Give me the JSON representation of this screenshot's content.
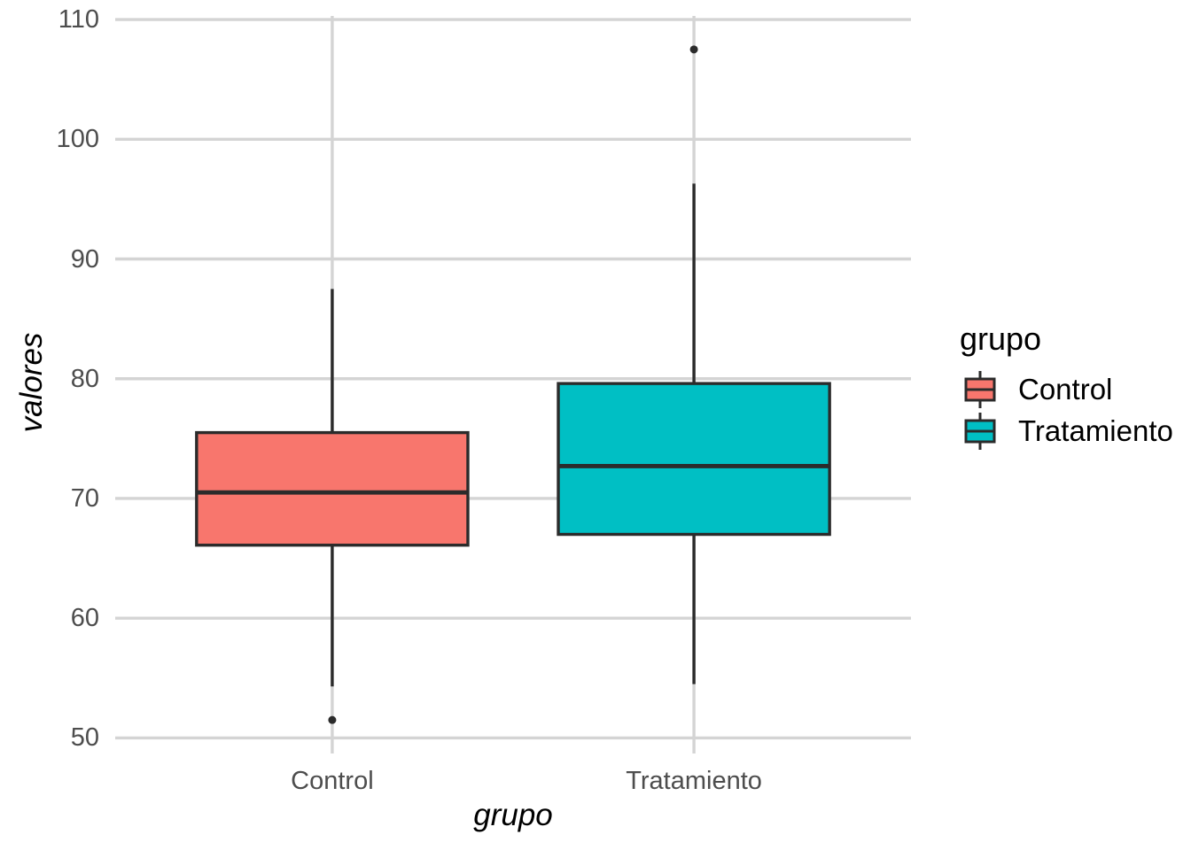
{
  "figure": {
    "background": "#ffffff"
  },
  "chart_data": {
    "type": "boxplot",
    "title": "",
    "xlabel": "grupo",
    "ylabel": "valores",
    "categories": [
      "Control",
      "Tratamiento"
    ],
    "ylim": [
      48.7,
      110.3
    ],
    "yticks": [
      50,
      60,
      70,
      80,
      90,
      100,
      110
    ],
    "grid": "major gridlines only, light gray on white panel",
    "legend_position": "right",
    "series": [
      {
        "name": "Control",
        "fill": "#F8766D",
        "stats": {
          "lower_whisker": 54.3,
          "q1": 66.1,
          "median": 70.5,
          "q3": 75.5,
          "upper_whisker": 87.5
        },
        "outliers": [
          51.5
        ]
      },
      {
        "name": "Tratamiento",
        "fill": "#00BFC4",
        "stats": {
          "lower_whisker": 54.5,
          "q1": 67.0,
          "median": 72.7,
          "q3": 79.6,
          "upper_whisker": 96.3
        },
        "outliers": [
          107.5
        ]
      }
    ],
    "legend": {
      "title": "grupo",
      "items": [
        {
          "label": "Control",
          "color": "#F8766D"
        },
        {
          "label": "Tratamiento",
          "color": "#00BFC4"
        }
      ]
    },
    "style": {
      "box_line_color": "#2b2b2b",
      "grid_color": "#d4d4d4",
      "tick_label_color": "#4d4d4d",
      "axis_title_color": "#000000"
    }
  }
}
